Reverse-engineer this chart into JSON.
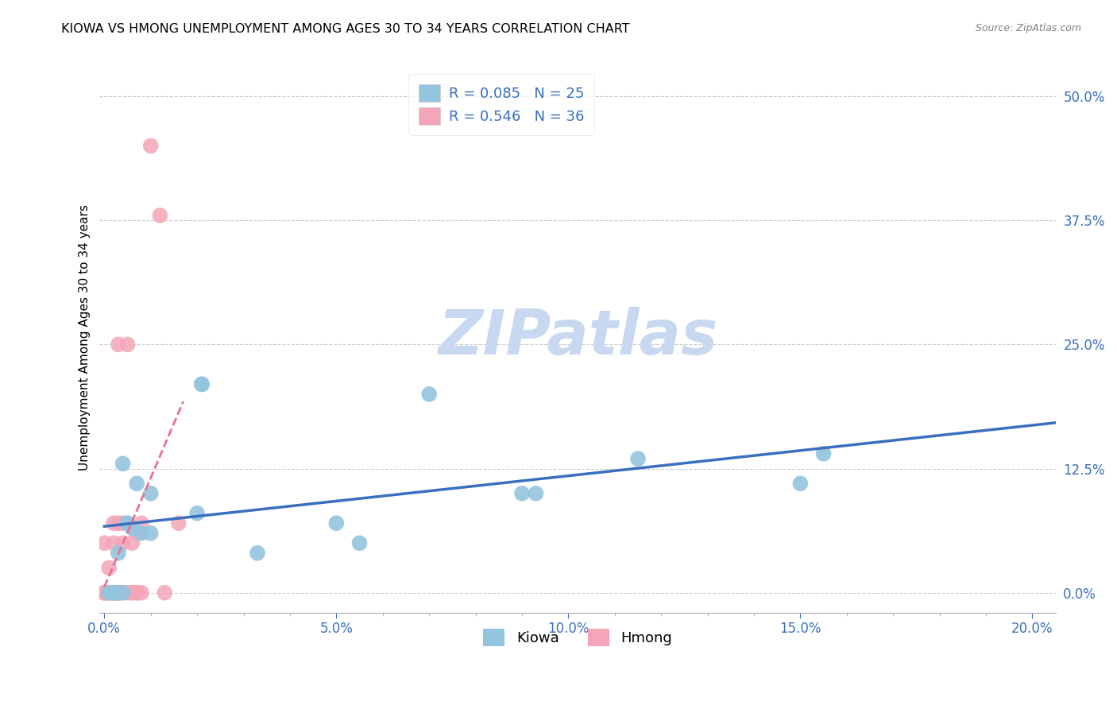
{
  "title": "KIOWA VS HMONG UNEMPLOYMENT AMONG AGES 30 TO 34 YEARS CORRELATION CHART",
  "source": "Source: ZipAtlas.com",
  "ylabel": "Unemployment Among Ages 30 to 34 years",
  "xlabel_ticks": [
    "0.0%",
    "5.0%",
    "10.0%",
    "15.0%",
    "20.0%"
  ],
  "xlabel_vals": [
    0.0,
    0.05,
    0.1,
    0.15,
    0.2
  ],
  "ylabel_ticks": [
    "0.0%",
    "12.5%",
    "25.0%",
    "37.5%",
    "50.0%"
  ],
  "ylabel_vals": [
    0.0,
    0.125,
    0.25,
    0.375,
    0.5
  ],
  "xlim": [
    -0.001,
    0.205
  ],
  "ylim": [
    -0.02,
    0.535
  ],
  "kiowa_R": 0.085,
  "kiowa_N": 25,
  "hmong_R": 0.546,
  "hmong_N": 36,
  "kiowa_color": "#92c5de",
  "hmong_color": "#f4a6b8",
  "kiowa_line_color": "#3a6fbf",
  "hmong_line_color": "#e87090",
  "watermark": "ZIPatlas",
  "watermark_color": "#c8d8f0",
  "title_fontsize": 11.5,
  "source_fontsize": 9,
  "kiowa_x": [
    0.001,
    0.002,
    0.003,
    0.003,
    0.004,
    0.004,
    0.005,
    0.005,
    0.006,
    0.007,
    0.008,
    0.01,
    0.01,
    0.02,
    0.021,
    0.021,
    0.033,
    0.05,
    0.055,
    0.07,
    0.09,
    0.093,
    0.115,
    0.15,
    0.155
  ],
  "kiowa_y": [
    0.0,
    0.0,
    0.04,
    0.0,
    0.0,
    0.13,
    0.07,
    0.07,
    0.065,
    0.11,
    0.06,
    0.1,
    0.06,
    0.08,
    0.21,
    0.21,
    0.04,
    0.07,
    0.05,
    0.2,
    0.1,
    0.1,
    0.135,
    0.11,
    0.14
  ],
  "hmong_x": [
    0.0,
    0.0,
    0.0,
    0.0,
    0.001,
    0.001,
    0.001,
    0.001,
    0.002,
    0.002,
    0.002,
    0.002,
    0.002,
    0.003,
    0.003,
    0.003,
    0.003,
    0.003,
    0.003,
    0.004,
    0.004,
    0.004,
    0.005,
    0.005,
    0.006,
    0.006,
    0.006,
    0.007,
    0.007,
    0.007,
    0.008,
    0.008,
    0.01,
    0.012,
    0.013,
    0.016
  ],
  "hmong_y": [
    0.0,
    0.0,
    0.0,
    0.05,
    0.0,
    0.0,
    0.0,
    0.025,
    0.0,
    0.0,
    0.0,
    0.05,
    0.07,
    0.0,
    0.0,
    0.0,
    0.0,
    0.07,
    0.25,
    0.0,
    0.05,
    0.07,
    0.0,
    0.25,
    0.0,
    0.0,
    0.05,
    0.0,
    0.0,
    0.06,
    0.0,
    0.07,
    0.45,
    0.38,
    0.0,
    0.07
  ],
  "grid_color": "#cccccc",
  "background_color": "#ffffff"
}
